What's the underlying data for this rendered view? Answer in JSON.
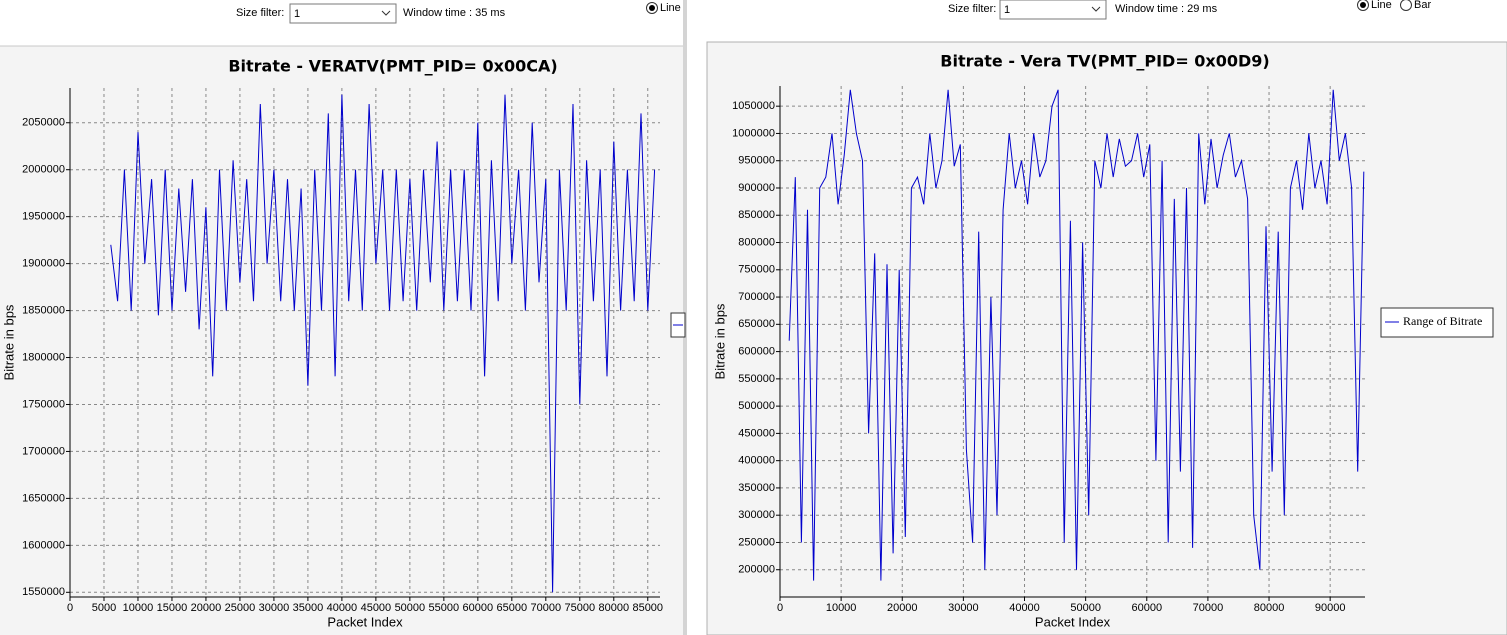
{
  "controls": [
    {
      "size_filter_label": "Size filter:",
      "size_filter_value": "1",
      "window_time": "Window time : 35 ms",
      "radios": [
        "Line"
      ]
    },
    {
      "size_filter_label": "Size filter:",
      "size_filter_value": "1",
      "window_time": "Window time : 29 ms",
      "radios": [
        "Line",
        "Bar"
      ]
    }
  ],
  "chart_data": [
    {
      "type": "line",
      "title": "Bitrate - VERATV(PMT_PID= 0x00CA)",
      "x_label": "Packet Index",
      "y_label": "Bitrate in bps",
      "xlim": [
        0,
        86800
      ],
      "ylim": [
        1545000,
        2087000
      ],
      "xticks": [
        0,
        5000,
        10000,
        15000,
        20000,
        25000,
        30000,
        35000,
        40000,
        45000,
        50000,
        55000,
        60000,
        65000,
        70000,
        75000,
        80000,
        85000
      ],
      "yticks": [
        1550000,
        1600000,
        1650000,
        1700000,
        1750000,
        1800000,
        1850000,
        1900000,
        1950000,
        2000000,
        2050000
      ],
      "grid": true,
      "x": [
        6000,
        7000,
        8000,
        9000,
        10000,
        11000,
        12000,
        13000,
        14000,
        15000,
        16000,
        17000,
        18000,
        19000,
        20000,
        21000,
        22000,
        23000,
        24000,
        25000,
        26000,
        27000,
        28000,
        29000,
        30000,
        31000,
        32000,
        33000,
        34000,
        35000,
        36000,
        37000,
        38000,
        39000,
        40000,
        41000,
        42000,
        43000,
        44000,
        45000,
        46000,
        47000,
        48000,
        49000,
        50000,
        51000,
        52000,
        53000,
        54000,
        55000,
        56000,
        57000,
        58000,
        59000,
        60000,
        61000,
        62000,
        63000,
        64000,
        65000,
        66000,
        67000,
        68000,
        69000,
        70000,
        71000,
        72000,
        73000,
        74000,
        75000,
        76000,
        77000,
        78000,
        79000,
        80000,
        81000,
        82000,
        83000,
        84000,
        85000,
        86000
      ],
      "series": [
        {
          "color": "#0000cc",
          "values": [
            1920000,
            1860000,
            2000000,
            1850000,
            2040000,
            1900000,
            1990000,
            1845000,
            2000000,
            1850000,
            1980000,
            1870000,
            1990000,
            1830000,
            1960000,
            1780000,
            2000000,
            1850000,
            2010000,
            1880000,
            1990000,
            1860000,
            2070000,
            1900000,
            2000000,
            1860000,
            1990000,
            1850000,
            1980000,
            1770000,
            2000000,
            1850000,
            2060000,
            1780000,
            2080000,
            1860000,
            2000000,
            1850000,
            2070000,
            1900000,
            2000000,
            1850000,
            2000000,
            1860000,
            1990000,
            1850000,
            2000000,
            1880000,
            2030000,
            1850000,
            2000000,
            1860000,
            2000000,
            1850000,
            2050000,
            1780000,
            2010000,
            1860000,
            2080000,
            1900000,
            2000000,
            1850000,
            2050000,
            1880000,
            1990000,
            1550000,
            2000000,
            1850000,
            2070000,
            1750000,
            2010000,
            1860000,
            2000000,
            1780000,
            2030000,
            1850000,
            2000000,
            1860000,
            2060000,
            1850000,
            2000000
          ]
        }
      ]
    },
    {
      "type": "line",
      "title": "Bitrate - Vera TV(PMT_PID= 0x00D9)",
      "x_label": "Packet Index",
      "y_label": "Bitrate in bps",
      "xlim": [
        0,
        95700
      ],
      "ylim": [
        150000,
        1087000
      ],
      "xticks": [
        0,
        10000,
        20000,
        30000,
        40000,
        50000,
        60000,
        70000,
        80000,
        90000
      ],
      "yticks": [
        200000,
        250000,
        300000,
        350000,
        400000,
        450000,
        500000,
        550000,
        600000,
        650000,
        700000,
        750000,
        800000,
        850000,
        900000,
        950000,
        1000000,
        1050000
      ],
      "grid": true,
      "legend": "right",
      "x": [
        1500,
        2500,
        3500,
        4500,
        5500,
        6500,
        7500,
        8500,
        9500,
        10500,
        11500,
        12500,
        13500,
        14500,
        15500,
        16500,
        17500,
        18500,
        19500,
        20500,
        21500,
        22500,
        23500,
        24500,
        25500,
        26500,
        27500,
        28500,
        29500,
        30500,
        31500,
        32500,
        33500,
        34500,
        35500,
        36500,
        37500,
        38500,
        39500,
        40500,
        41500,
        42500,
        43500,
        44500,
        45500,
        46500,
        47500,
        48500,
        49500,
        50500,
        51500,
        52500,
        53500,
        54500,
        55500,
        56500,
        57500,
        58500,
        59500,
        60500,
        61500,
        62500,
        63500,
        64500,
        65500,
        66500,
        67500,
        68500,
        69500,
        70500,
        71500,
        72500,
        73500,
        74500,
        75500,
        76500,
        77500,
        78500,
        79500,
        80500,
        81500,
        82500,
        83500,
        84500,
        85500,
        86500,
        87500,
        88500,
        89500,
        90500,
        91500,
        92500,
        93500,
        94500,
        95500
      ],
      "series": [
        {
          "name": "Range of Bitrate",
          "color": "#0000cc",
          "values": [
            620000,
            920000,
            250000,
            860000,
            180000,
            900000,
            920000,
            1000000,
            870000,
            960000,
            1080000,
            1000000,
            950000,
            450000,
            780000,
            180000,
            760000,
            230000,
            750000,
            260000,
            900000,
            920000,
            870000,
            1000000,
            900000,
            950000,
            1080000,
            940000,
            980000,
            420000,
            250000,
            820000,
            200000,
            700000,
            300000,
            860000,
            1000000,
            900000,
            950000,
            870000,
            1000000,
            920000,
            950000,
            1050000,
            1080000,
            250000,
            840000,
            200000,
            800000,
            300000,
            950000,
            900000,
            1000000,
            920000,
            990000,
            940000,
            950000,
            1000000,
            920000,
            980000,
            400000,
            950000,
            250000,
            880000,
            380000,
            900000,
            240000,
            1000000,
            870000,
            990000,
            900000,
            960000,
            1000000,
            920000,
            950000,
            880000,
            300000,
            200000,
            830000,
            380000,
            820000,
            300000,
            900000,
            950000,
            860000,
            1000000,
            900000,
            950000,
            870000,
            1080000,
            950000,
            1000000,
            900000,
            380000,
            930000
          ]
        }
      ]
    }
  ]
}
